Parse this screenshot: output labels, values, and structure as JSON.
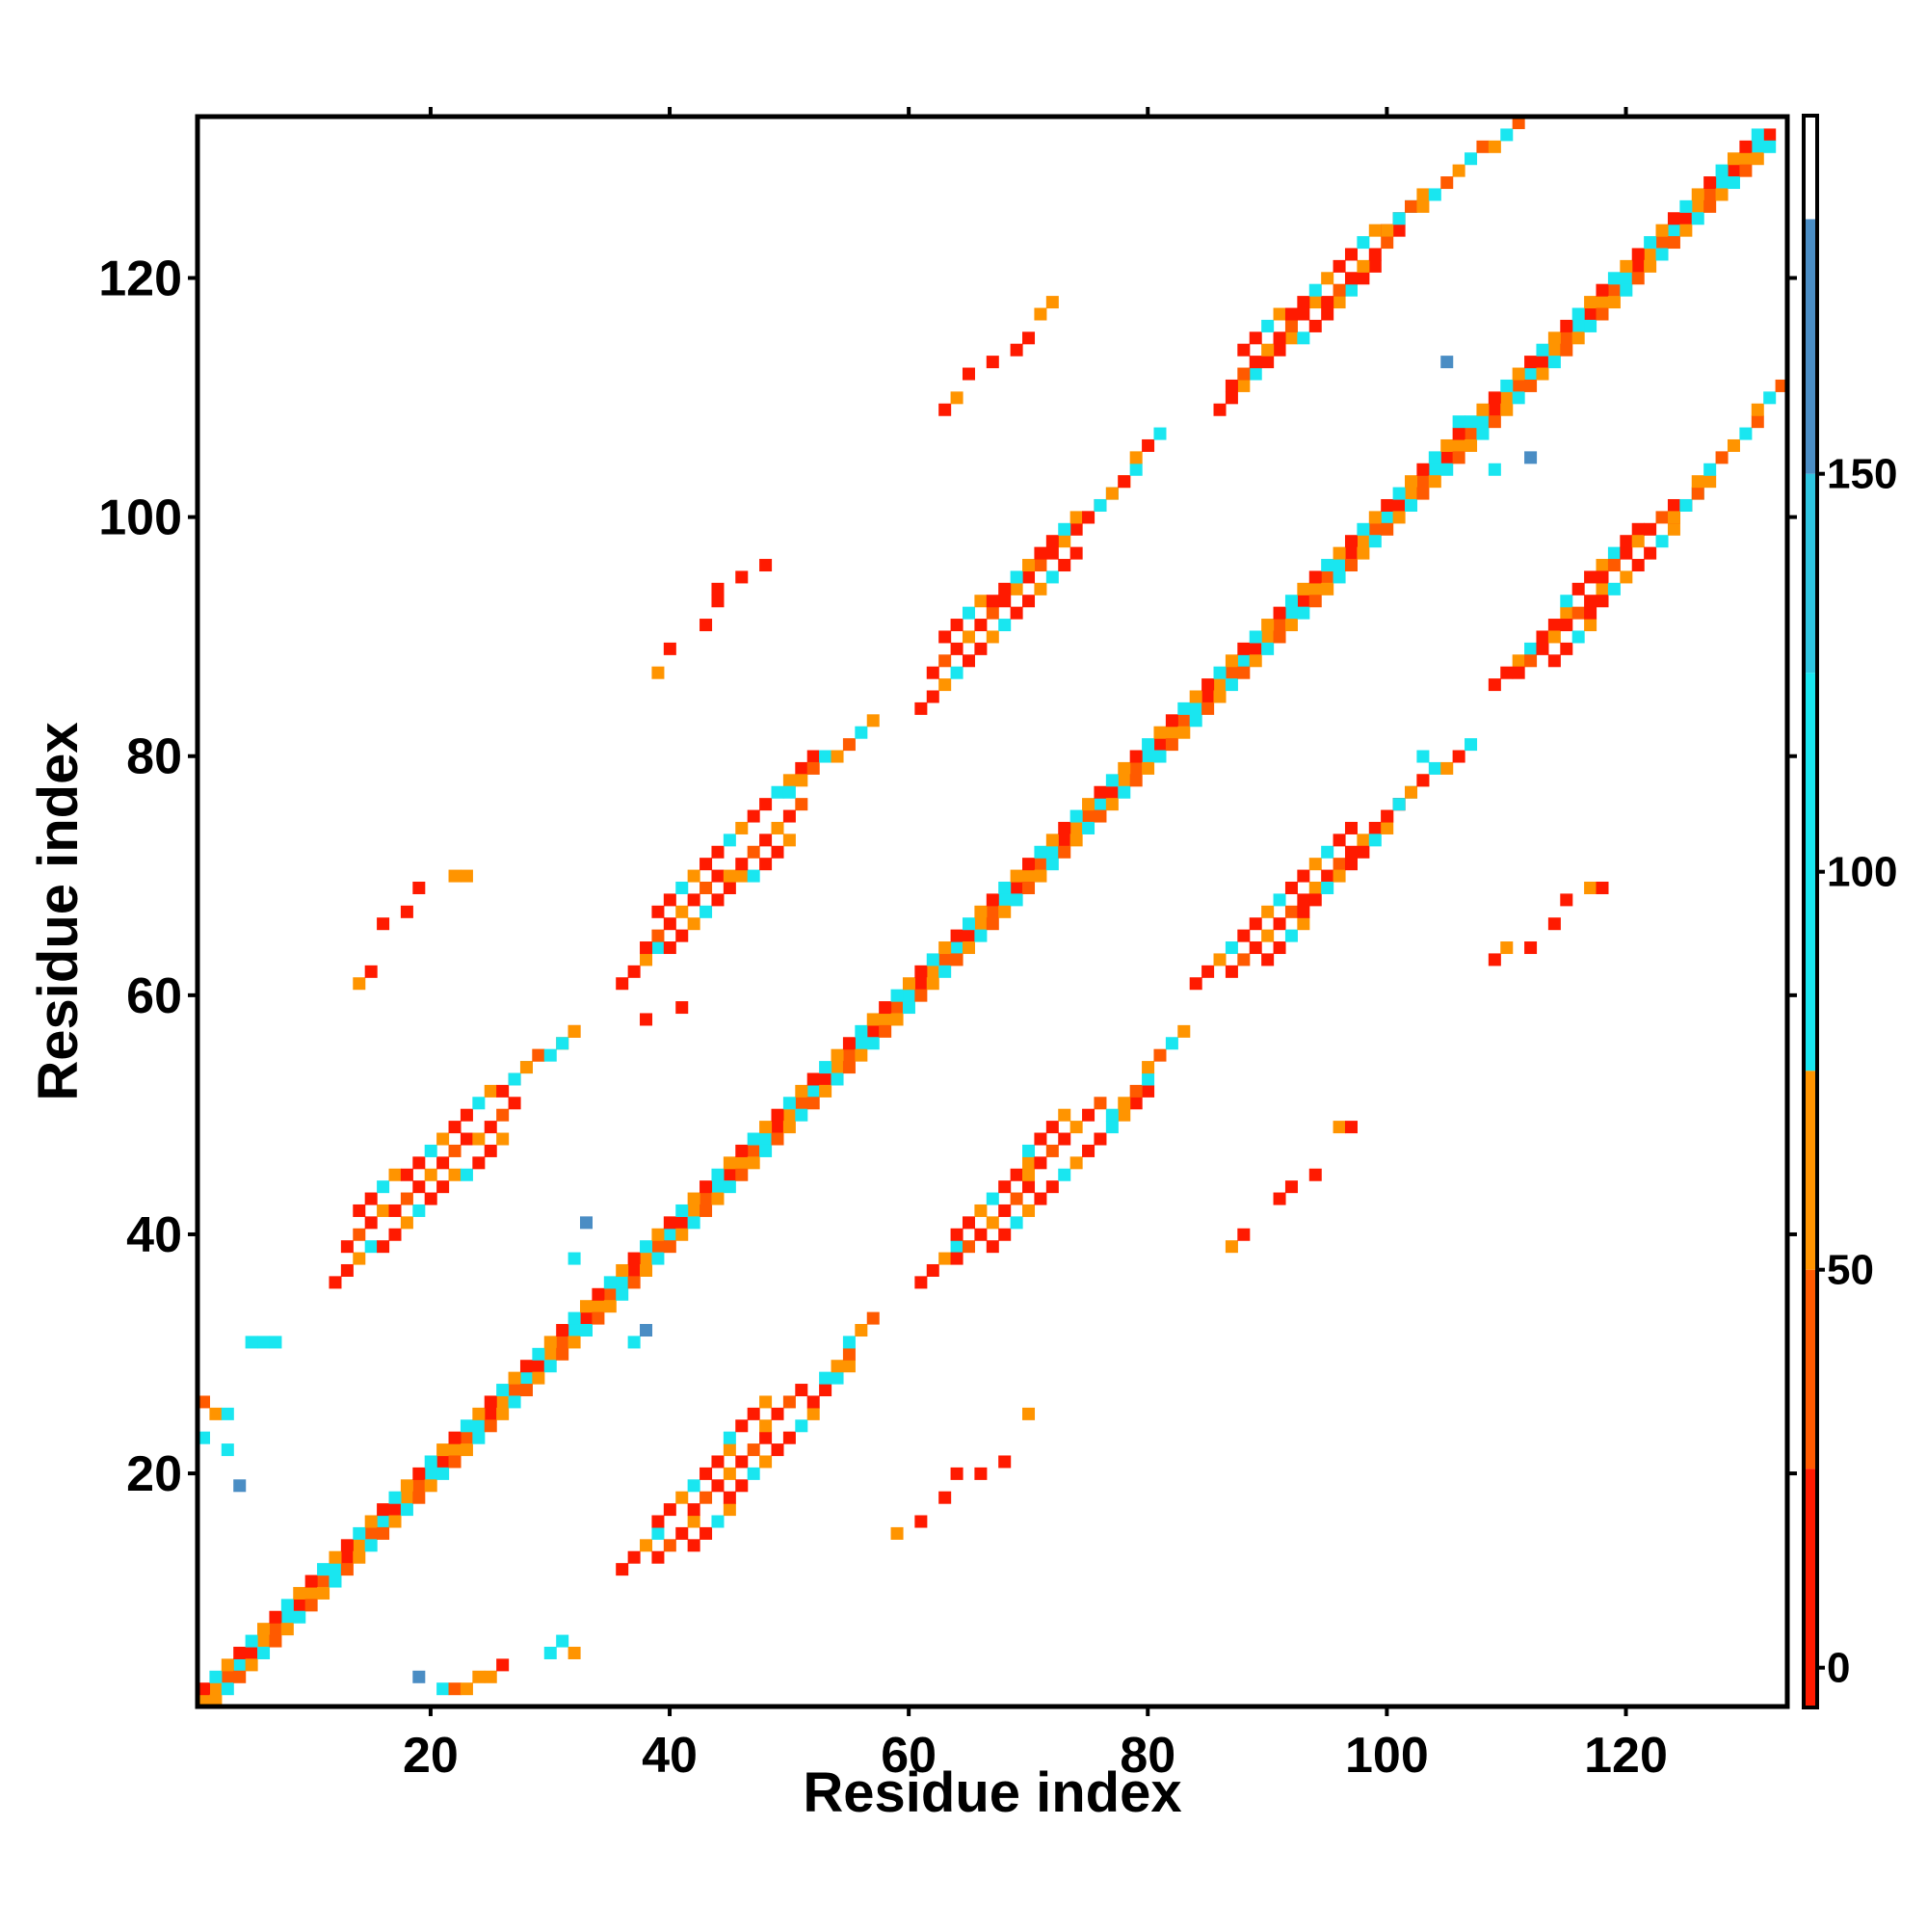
{
  "chart_data": {
    "type": "heatmap",
    "title": "",
    "xlabel": "Residue index",
    "ylabel": "Residue index",
    "xlim": [
      1,
      133
    ],
    "ylim": [
      1,
      133
    ],
    "x_ticks": [
      20,
      40,
      60,
      80,
      100,
      120
    ],
    "y_ticks": [
      20,
      40,
      60,
      80,
      100,
      120
    ],
    "grid": false,
    "colorbar": {
      "range": [
        -5,
        195
      ],
      "ticks": [
        0,
        50,
        100,
        150
      ],
      "bands": [
        {
          "from": -5,
          "to": 25,
          "color": "#ff1a00"
        },
        {
          "from": 25,
          "to": 50,
          "color": "#ff5a00"
        },
        {
          "from": 50,
          "to": 75,
          "color": "#ff9400"
        },
        {
          "from": 75,
          "to": 125,
          "color": "#19e6f0"
        },
        {
          "from": 125,
          "to": 150,
          "color": "#2ec4e0"
        },
        {
          "from": 150,
          "to": 182,
          "color": "#4a8dc4"
        },
        {
          "from": 182,
          "to": 195,
          "color": "#ffffff"
        }
      ]
    },
    "segments": [
      {
        "x0": 1,
        "y0": 1,
        "x1": 132,
        "y1": 132,
        "v": [
          60,
          30,
          90,
          10
        ]
      },
      {
        "x0": 2,
        "y0": 2,
        "x1": 131,
        "y1": 131,
        "v": [
          55,
          95,
          20,
          70
        ]
      },
      {
        "x0": 3,
        "y0": 3,
        "x1": 130,
        "y1": 130,
        "v": [
          40,
          80,
          10,
          60
        ]
      },
      {
        "x0": 0,
        "y0": 1,
        "x1": 131,
        "y1": 132,
        "v": [
          70,
          20,
          95
        ]
      },
      {
        "x0": 1,
        "y0": 0,
        "x1": 132,
        "y1": 131,
        "v": [
          30,
          65,
          100
        ]
      },
      {
        "x0": 36,
        "y0": 12,
        "x1": 48,
        "y1": 26,
        "v": [
          5,
          15,
          60,
          100
        ]
      },
      {
        "x0": 39,
        "y0": 13,
        "x1": 51,
        "y1": 27,
        "v": [
          10,
          40,
          5,
          70
        ]
      },
      {
        "x0": 42,
        "y0": 14,
        "x1": 55,
        "y1": 29,
        "v": [
          20,
          5,
          90,
          55
        ]
      },
      {
        "x0": 53,
        "y0": 28,
        "x1": 57,
        "y1": 33,
        "v": [
          100,
          60,
          40
        ]
      },
      {
        "x0": 61,
        "y0": 36,
        "x1": 73,
        "y1": 50,
        "v": [
          5,
          15,
          60,
          100
        ]
      },
      {
        "x0": 64,
        "y0": 38,
        "x1": 76,
        "y1": 51,
        "v": [
          10,
          40,
          5,
          70
        ]
      },
      {
        "x0": 67,
        "y0": 39,
        "x1": 80,
        "y1": 52,
        "v": [
          20,
          5,
          90,
          55
        ]
      },
      {
        "x0": 77,
        "y0": 50,
        "x1": 83,
        "y1": 57,
        "v": [
          100,
          60,
          30
        ]
      },
      {
        "x0": 84,
        "y0": 61,
        "x1": 97,
        "y1": 74,
        "v": [
          5,
          15,
          60,
          100
        ]
      },
      {
        "x0": 87,
        "y0": 62,
        "x1": 101,
        "y1": 76,
        "v": [
          10,
          40,
          5,
          70
        ]
      },
      {
        "x0": 90,
        "y0": 63,
        "x1": 103,
        "y1": 78,
        "v": [
          20,
          5,
          90,
          55
        ]
      },
      {
        "x0": 101,
        "y0": 76,
        "x1": 107,
        "y1": 81,
        "v": [
          100,
          60,
          20
        ]
      },
      {
        "x0": 109,
        "y0": 86,
        "x1": 121,
        "y1": 99,
        "v": [
          5,
          15,
          60,
          100
        ]
      },
      {
        "x0": 111,
        "y0": 87,
        "x1": 124,
        "y1": 101,
        "v": [
          10,
          40,
          5,
          70
        ]
      },
      {
        "x0": 114,
        "y0": 88,
        "x1": 127,
        "y1": 103,
        "v": [
          20,
          5,
          90,
          55
        ]
      },
      {
        "x0": 124,
        "y0": 100,
        "x1": 133,
        "y1": 111,
        "v": [
          60,
          100,
          40
        ]
      },
      {
        "x0": 12,
        "y0": 36,
        "x1": 26,
        "y1": 48,
        "v": [
          5,
          15,
          60,
          100
        ]
      },
      {
        "x0": 13,
        "y0": 39,
        "x1": 27,
        "y1": 51,
        "v": [
          10,
          40,
          5,
          70
        ]
      },
      {
        "x0": 14,
        "y0": 42,
        "x1": 29,
        "y1": 55,
        "v": [
          20,
          5,
          90,
          55
        ]
      },
      {
        "x0": 27,
        "y0": 53,
        "x1": 32,
        "y1": 57,
        "v": [
          100,
          60,
          40
        ]
      },
      {
        "x0": 36,
        "y0": 61,
        "x1": 50,
        "y1": 73,
        "v": [
          5,
          15,
          60,
          100
        ]
      },
      {
        "x0": 38,
        "y0": 64,
        "x1": 51,
        "y1": 76,
        "v": [
          10,
          40,
          5,
          70
        ]
      },
      {
        "x0": 39,
        "y0": 67,
        "x1": 52,
        "y1": 80,
        "v": [
          20,
          5,
          90,
          55
        ]
      },
      {
        "x0": 50,
        "y0": 77,
        "x1": 57,
        "y1": 83,
        "v": [
          100,
          60,
          30
        ]
      },
      {
        "x0": 61,
        "y0": 84,
        "x1": 74,
        "y1": 97,
        "v": [
          5,
          15,
          60,
          100
        ]
      },
      {
        "x0": 62,
        "y0": 87,
        "x1": 76,
        "y1": 101,
        "v": [
          10,
          40,
          5,
          70
        ]
      },
      {
        "x0": 63,
        "y0": 90,
        "x1": 78,
        "y1": 103,
        "v": [
          20,
          5,
          90,
          55
        ]
      },
      {
        "x0": 76,
        "y0": 101,
        "x1": 81,
        "y1": 107,
        "v": [
          100,
          60,
          20
        ]
      },
      {
        "x0": 86,
        "y0": 109,
        "x1": 99,
        "y1": 121,
        "v": [
          5,
          15,
          60,
          100
        ]
      },
      {
        "x0": 87,
        "y0": 111,
        "x1": 101,
        "y1": 124,
        "v": [
          10,
          40,
          5,
          70
        ]
      },
      {
        "x0": 88,
        "y0": 114,
        "x1": 103,
        "y1": 127,
        "v": [
          20,
          5,
          90,
          55
        ]
      },
      {
        "x0": 100,
        "y0": 124,
        "x1": 111,
        "y1": 133,
        "v": [
          60,
          100,
          40
        ]
      }
    ],
    "cells": [
      [
        1,
        26,
        40
      ],
      [
        2,
        25,
        60
      ],
      [
        3,
        25,
        90
      ],
      [
        1,
        23,
        100
      ],
      [
        3,
        22,
        100
      ],
      [
        4,
        19,
        170
      ],
      [
        5,
        31,
        100
      ],
      [
        6,
        31,
        100
      ],
      [
        7,
        31,
        95
      ],
      [
        19,
        3,
        170
      ],
      [
        21,
        2,
        100
      ],
      [
        22,
        2,
        40
      ],
      [
        23,
        2,
        60
      ],
      [
        24,
        3,
        60
      ],
      [
        25,
        3,
        50
      ],
      [
        26,
        4,
        10
      ],
      [
        30,
        5,
        100
      ],
      [
        31,
        6,
        100
      ],
      [
        32,
        5,
        60
      ],
      [
        33,
        41,
        170
      ],
      [
        37,
        31,
        100
      ],
      [
        38,
        32,
        170
      ],
      [
        32,
        38,
        100
      ],
      [
        31,
        56,
        100
      ],
      [
        32,
        57,
        60
      ],
      [
        38,
        58,
        10
      ],
      [
        41,
        59,
        20
      ],
      [
        14,
        61,
        60
      ],
      [
        15,
        62,
        10
      ],
      [
        16,
        66,
        20
      ],
      [
        18,
        67,
        10
      ],
      [
        19,
        69,
        20
      ],
      [
        22,
        70,
        60
      ],
      [
        23,
        70,
        60
      ],
      [
        39,
        87,
        60
      ],
      [
        40,
        89,
        10
      ],
      [
        43,
        91,
        20
      ],
      [
        44,
        93,
        10
      ],
      [
        44,
        94,
        20
      ],
      [
        46,
        95,
        10
      ],
      [
        48,
        96,
        10
      ],
      [
        63,
        109,
        20
      ],
      [
        64,
        110,
        50
      ],
      [
        65,
        112,
        10
      ],
      [
        67,
        113,
        10
      ],
      [
        69,
        114,
        10
      ],
      [
        70,
        115,
        20
      ],
      [
        71,
        117,
        60
      ],
      [
        72,
        118,
        50
      ],
      [
        87,
        39,
        60
      ],
      [
        88,
        40,
        10
      ],
      [
        91,
        43,
        20
      ],
      [
        92,
        44,
        10
      ],
      [
        94,
        45,
        20
      ],
      [
        96,
        49,
        60
      ],
      [
        97,
        49,
        10
      ],
      [
        109,
        63,
        20
      ],
      [
        110,
        64,
        60
      ],
      [
        112,
        64,
        10
      ],
      [
        114,
        66,
        10
      ],
      [
        115,
        68,
        20
      ],
      [
        117,
        69,
        60
      ],
      [
        118,
        69,
        20
      ],
      [
        59,
        15,
        60
      ],
      [
        61,
        16,
        10
      ],
      [
        63,
        18,
        10
      ],
      [
        64,
        20,
        20
      ],
      [
        66,
        20,
        20
      ],
      [
        68,
        21,
        10
      ],
      [
        70,
        25,
        60
      ],
      [
        105,
        113,
        170
      ],
      [
        112,
        105,
        170
      ],
      [
        106,
        108,
        100
      ],
      [
        109,
        104,
        100
      ],
      [
        103,
        80,
        100
      ]
    ]
  }
}
